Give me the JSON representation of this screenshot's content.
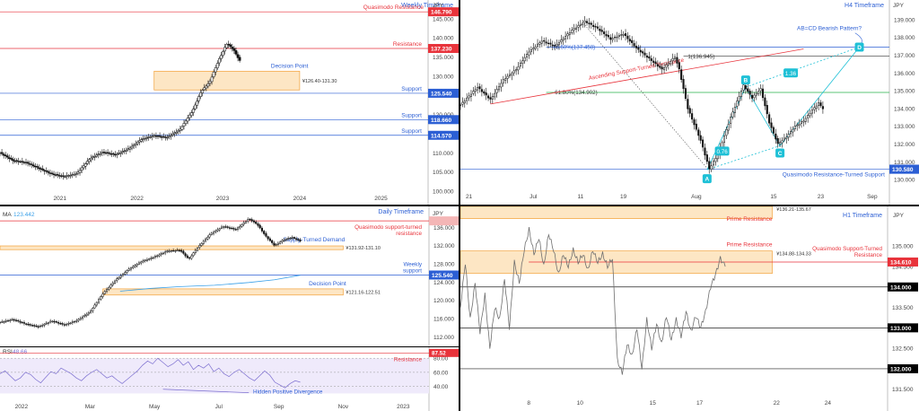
{
  "colors": {
    "red": "#e8333b",
    "blue": "#2c5fd4",
    "dark_line": "#333333",
    "zone_fill": "#fde6c4",
    "zone_edge": "#f2a13a",
    "teal": "#1ec0d6",
    "green": "#28b34a",
    "ma_blue": "#3aa0e8",
    "rsi_purple": "#7c6fd0",
    "h1_line": "#6e6e6e"
  },
  "chart_data": [
    {
      "id": "weekly",
      "type": "candlestick",
      "title": "Weekly Timeframe",
      "axis_unit": "JPY",
      "ylim": [
        100,
        148
      ],
      "y_ticks": [
        "145.000",
        "140.000",
        "135.000",
        "130.000",
        "125.000",
        "120.000",
        "115.000",
        "110.000",
        "105.000",
        "100.000"
      ],
      "x_ticks": [
        "2021",
        "2022",
        "2023",
        "2024",
        "2025"
      ],
      "levels": [
        {
          "label": "Quasimodo Resistance",
          "value": 146.79,
          "tag": "146.790",
          "color": "red"
        },
        {
          "label": "Resistance",
          "value": 137.23,
          "tag": "137.230",
          "color": "red"
        },
        {
          "label": "Support",
          "value": 125.54,
          "tag": "125.540",
          "color": "blue"
        },
        {
          "label": "Support",
          "value": 118.66,
          "tag": "118.660",
          "color": "blue"
        },
        {
          "label": "Support",
          "value": 114.57,
          "tag": "114.570",
          "color": "blue"
        }
      ],
      "zones": [
        {
          "label": "Decision Point",
          "range_text": "¥126.40-131.30",
          "low": 126.4,
          "high": 131.3
        }
      ],
      "price_path": [
        [
          0,
          110
        ],
        [
          0.03,
          108
        ],
        [
          0.06,
          107.5
        ],
        [
          0.09,
          106
        ],
        [
          0.12,
          104.5
        ],
        [
          0.15,
          103.8
        ],
        [
          0.18,
          104.6
        ],
        [
          0.21,
          108.5
        ],
        [
          0.24,
          110.2
        ],
        [
          0.27,
          109.5
        ],
        [
          0.3,
          111
        ],
        [
          0.33,
          113.5
        ],
        [
          0.36,
          114.5
        ],
        [
          0.39,
          114
        ],
        [
          0.42,
          116
        ],
        [
          0.45,
          121
        ],
        [
          0.47,
          126
        ],
        [
          0.49,
          128.5
        ],
        [
          0.51,
          134
        ],
        [
          0.53,
          138.5
        ],
        [
          0.545,
          137
        ],
        [
          0.56,
          134
        ]
      ],
      "x_range": [
        0,
        1
      ]
    },
    {
      "id": "h4",
      "type": "candlestick",
      "title": "H4 Timeframe",
      "axis_unit": "JPY",
      "ylim": [
        129.7,
        139.7
      ],
      "y_ticks": [
        "139.000",
        "138.000",
        "137.000",
        "136.000",
        "135.000",
        "134.000",
        "133.000",
        "132.000",
        "131.000",
        "130.000"
      ],
      "x_ticks": [
        "21",
        "Jul",
        "11",
        "19",
        "Aug",
        "15",
        "23",
        "Sep"
      ],
      "levels": [
        {
          "label": "Quasimodo Resistance-Turned Support",
          "value": 130.58,
          "tag": "130.580",
          "color": "blue"
        },
        {
          "label": "61.80%(134.902)",
          "value": 134.902,
          "color": "green"
        },
        {
          "label": "78.60%(137.458)",
          "value": 137.458,
          "color": "blue"
        },
        {
          "label": "1(136.945)",
          "value": 136.945,
          "color": "dark"
        }
      ],
      "annotations": [
        "Ascending Support-Turned Resistance",
        "AB=CD Bearish Pattern?",
        "A",
        "B",
        "C",
        "D",
        "0.76",
        "1.36"
      ],
      "price_path": [
        [
          0,
          134.2
        ],
        [
          0.04,
          135.2
        ],
        [
          0.07,
          134.5
        ],
        [
          0.1,
          135.6
        ],
        [
          0.13,
          136.2
        ],
        [
          0.16,
          137.2
        ],
        [
          0.19,
          137.8
        ],
        [
          0.22,
          137.5
        ],
        [
          0.26,
          138.4
        ],
        [
          0.29,
          138.9
        ],
        [
          0.32,
          138.5
        ],
        [
          0.35,
          137.9
        ],
        [
          0.38,
          138.2
        ],
        [
          0.41,
          137.4
        ],
        [
          0.44,
          136.8
        ],
        [
          0.47,
          136.2
        ],
        [
          0.5,
          136.9
        ],
        [
          0.51,
          136.2
        ],
        [
          0.53,
          134.0
        ],
        [
          0.56,
          132.2
        ],
        [
          0.58,
          130.6
        ],
        [
          0.6,
          131.4
        ],
        [
          0.63,
          133.5
        ],
        [
          0.66,
          135.3
        ],
        [
          0.68,
          134.6
        ],
        [
          0.7,
          135.1
        ],
        [
          0.72,
          133.2
        ],
        [
          0.74,
          132.0
        ],
        [
          0.76,
          132.4
        ],
        [
          0.78,
          133.0
        ],
        [
          0.8,
          133.3
        ],
        [
          0.82,
          133.9
        ],
        [
          0.835,
          134.3
        ],
        [
          0.845,
          134.0
        ]
      ],
      "x_range": [
        0,
        1
      ]
    },
    {
      "id": "daily",
      "type": "candlestick",
      "title": "Daily Timeframe",
      "ma_label": "MA",
      "ma_value": "123.442",
      "axis_unit": "JPY",
      "ylim": [
        110.5,
        139
      ],
      "y_ticks": [
        "136.000",
        "132.000",
        "128.000",
        "124.000",
        "120.000",
        "116.000",
        "112.000"
      ],
      "x_ticks": [
        "2022",
        "Mar",
        "May",
        "Jul",
        "Sep",
        "Nov",
        "2023"
      ],
      "levels": [
        {
          "label": "Quasimodo support-turned resistance",
          "value": 137.4,
          "color": "red"
        },
        {
          "label": "Weekly support",
          "value": 125.54,
          "tag": "125.540",
          "color": "blue"
        }
      ],
      "zones": [
        {
          "label": "Supply-Turned Demand",
          "range_text": "¥131.92-131.10",
          "low": 131.1,
          "high": 131.92
        },
        {
          "label": "Decision Point",
          "range_text": "¥121.16-122.51",
          "low": 121.16,
          "high": 122.51
        }
      ],
      "price_path": [
        [
          0,
          115.2
        ],
        [
          0.03,
          115.8
        ],
        [
          0.06,
          114.8
        ],
        [
          0.09,
          114.2
        ],
        [
          0.12,
          115.5
        ],
        [
          0.15,
          114.6
        ],
        [
          0.18,
          115.6
        ],
        [
          0.21,
          117.5
        ],
        [
          0.24,
          121.5
        ],
        [
          0.27,
          124.5
        ],
        [
          0.3,
          126.8
        ],
        [
          0.33,
          128.5
        ],
        [
          0.36,
          129.5
        ],
        [
          0.39,
          130.8
        ],
        [
          0.42,
          131.0
        ],
        [
          0.44,
          129.0
        ],
        [
          0.46,
          131.5
        ],
        [
          0.49,
          134.5
        ],
        [
          0.52,
          136.2
        ],
        [
          0.55,
          135.5
        ],
        [
          0.58,
          137.9
        ],
        [
          0.6,
          136.6
        ],
        [
          0.62,
          134.0
        ],
        [
          0.64,
          132.0
        ],
        [
          0.66,
          133.2
        ],
        [
          0.68,
          133.8
        ],
        [
          0.7,
          133.0
        ]
      ],
      "ma_path": [
        [
          0.28,
          122.0
        ],
        [
          0.35,
          122.6
        ],
        [
          0.42,
          123.0
        ],
        [
          0.5,
          123.3
        ],
        [
          0.58,
          123.9
        ],
        [
          0.64,
          124.5
        ],
        [
          0.7,
          125.5
        ]
      ],
      "x_range": [
        0,
        1
      ]
    },
    {
      "id": "rsi",
      "type": "line",
      "title": "RSI",
      "rsi_value": "48.66",
      "ylim": [
        28,
        93
      ],
      "y_ticks": [
        "80.00",
        "60.00",
        "40.00"
      ],
      "levels": [
        {
          "label": "Resistance",
          "value": 87.52,
          "tag": "87.52",
          "color": "red"
        }
      ],
      "annotations": [
        "Hidden Positive Divergence"
      ],
      "values": [
        58,
        62,
        55,
        48,
        52,
        60,
        57,
        50,
        45,
        53,
        61,
        58,
        66,
        62,
        58,
        52,
        48,
        55,
        60,
        64,
        58,
        52,
        55,
        49,
        44,
        50,
        56,
        62,
        70,
        76,
        72,
        80,
        74,
        68,
        72,
        78,
        70,
        75,
        64,
        70,
        66,
        72,
        61,
        66,
        58,
        54,
        60,
        64,
        58,
        52,
        48,
        55,
        62,
        56,
        46,
        42,
        38,
        44,
        48,
        46
      ],
      "x_range": [
        0,
        0.7
      ]
    },
    {
      "id": "h1",
      "type": "line",
      "title": "H1 Timeframe",
      "axis_unit": "JPY",
      "ylim": [
        131.45,
        135.75
      ],
      "y_ticks": [
        "135.000",
        "134.500",
        "134.000",
        "133.500",
        "133.000",
        "132.500",
        "132.000",
        "131.500"
      ],
      "x_ticks": [
        "8",
        "10",
        "15",
        "17",
        "22",
        "24"
      ],
      "levels": [
        {
          "label": "134.000",
          "value": 134.0,
          "tag": "134.000",
          "color": "dark"
        },
        {
          "label": "133.000",
          "value": 133.0,
          "tag": "133.000",
          "color": "dark"
        },
        {
          "label": "132.000",
          "value": 132.0,
          "tag": "132.000",
          "color": "dark"
        },
        {
          "label": "Quasimodo Support-Turned Resistance",
          "value": 134.61,
          "tag": "134.610",
          "color": "red"
        }
      ],
      "zones": [
        {
          "label": "Prime Resistance",
          "range_text": "¥136.21-135.67",
          "low": 135.67,
          "high": 136.21
        },
        {
          "label": "Prime Resistance",
          "range_text": "¥134.88-134.33",
          "low": 134.33,
          "high": 134.88
        }
      ],
      "values": [
        133.5,
        134.6,
        133.2,
        134.1,
        132.9,
        133.8,
        132.5,
        133.5,
        133.2,
        134.2,
        133.0,
        134.6,
        134.1,
        134.9,
        135.4,
        134.8,
        135.2,
        134.5,
        135.3,
        134.9,
        134.3,
        134.8,
        134.5,
        134.9,
        134.6,
        134.8,
        134.4,
        134.9,
        134.6,
        134.8,
        134.5,
        134.7,
        132.2,
        131.9,
        132.6,
        132.3,
        133.0,
        132.0,
        133.2,
        132.5,
        133.1,
        132.6,
        133.3,
        132.7,
        133.2,
        132.8,
        133.4,
        132.9,
        133.3,
        133.0,
        133.4,
        134.0,
        134.3,
        134.7,
        134.5
      ],
      "x_range": [
        0,
        0.62
      ]
    }
  ]
}
